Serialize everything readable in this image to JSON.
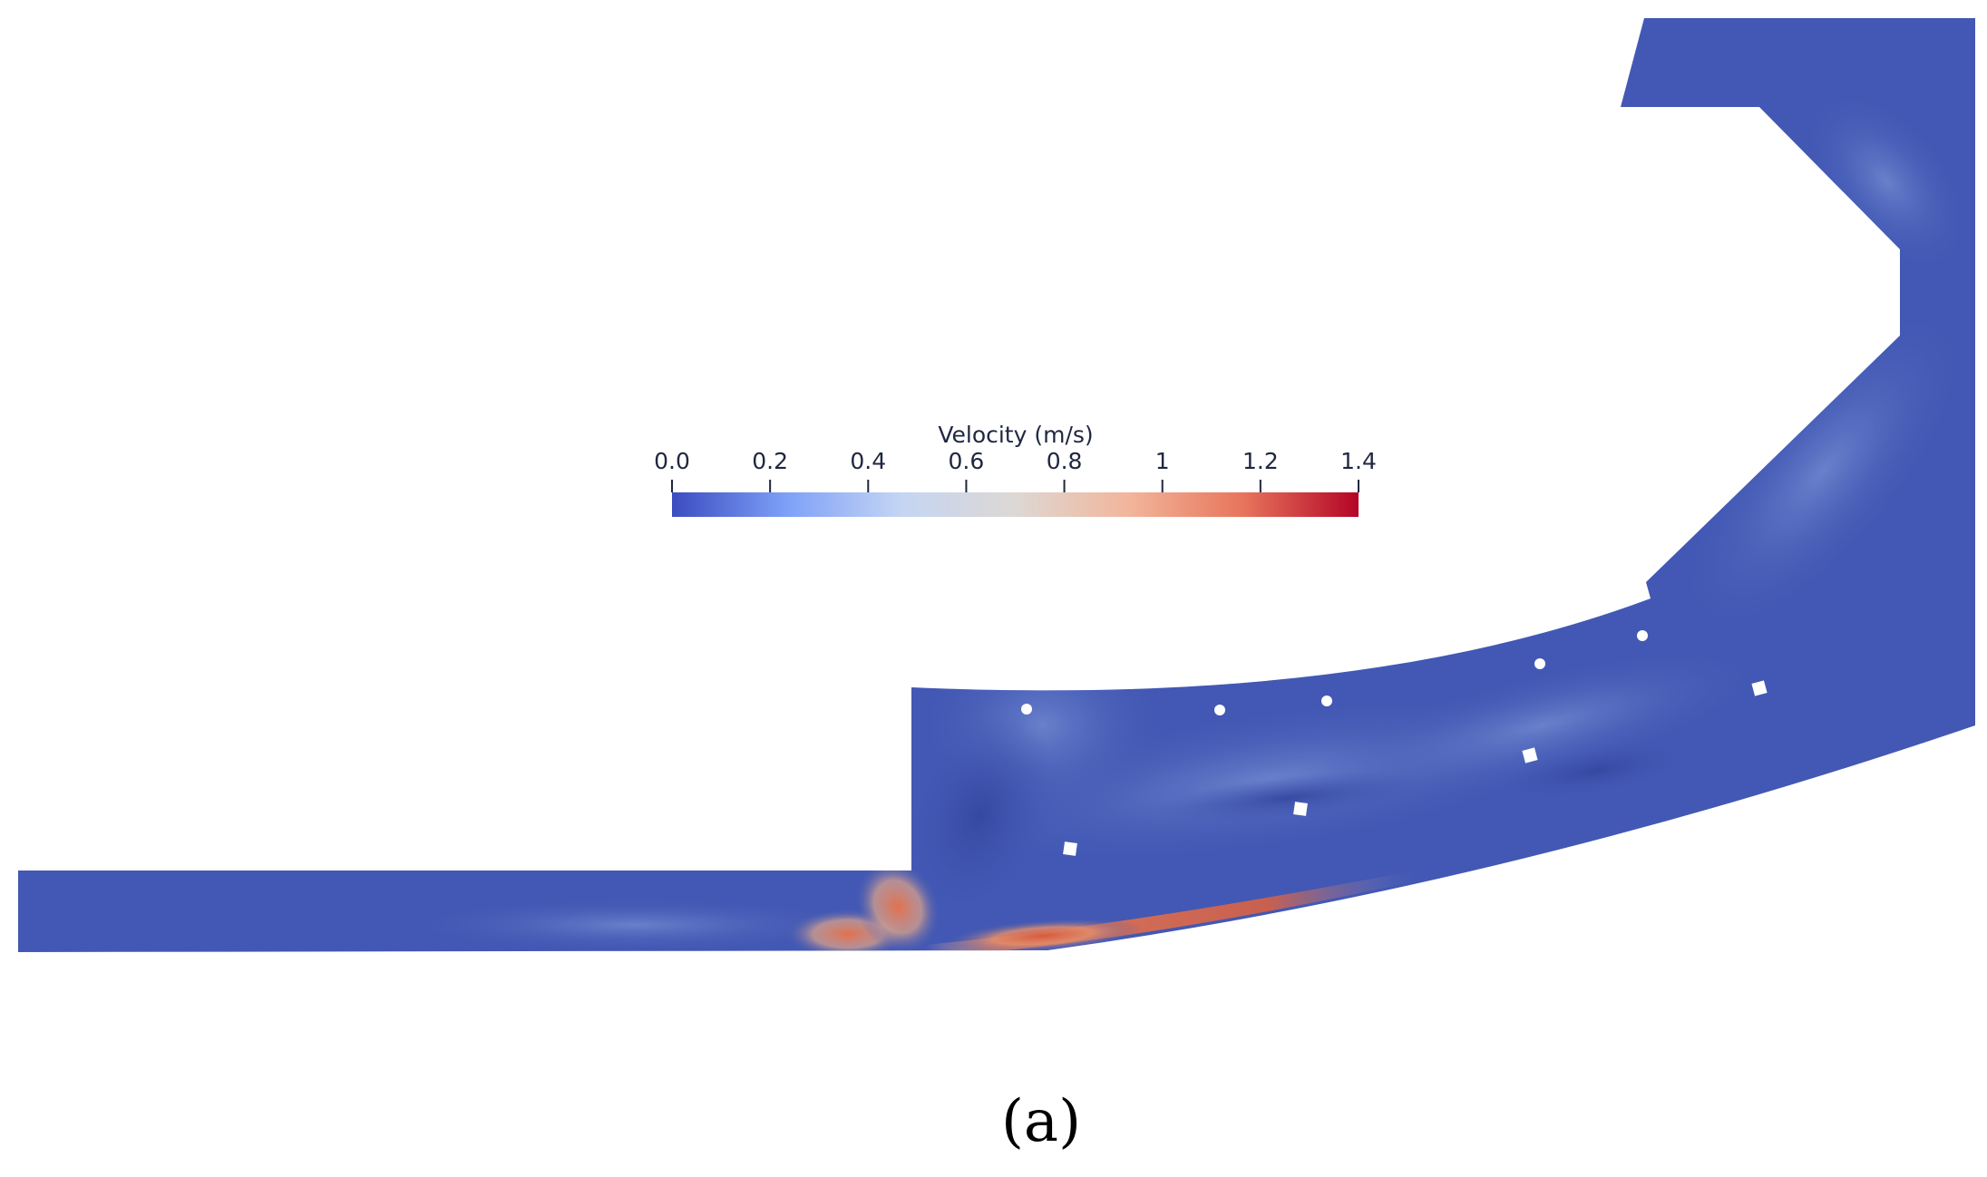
{
  "colorbar": {
    "title": "Velocity (m/s)",
    "range": [
      0.0,
      1.4
    ],
    "ticks": [
      {
        "value": 0.0,
        "label": "0.0"
      },
      {
        "value": 0.2,
        "label": "0.2"
      },
      {
        "value": 0.4,
        "label": "0.4"
      },
      {
        "value": 0.6,
        "label": "0.6"
      },
      {
        "value": 0.8,
        "label": "0.8"
      },
      {
        "value": 1.0,
        "label": "1"
      },
      {
        "value": 1.2,
        "label": "1.2"
      },
      {
        "value": 1.4,
        "label": "1.4"
      }
    ],
    "colormap": [
      "#3b4cc0",
      "#7ea0f8",
      "#c4d5f3",
      "#ddd8d4",
      "#f2b59a",
      "#e7745b",
      "#b40426"
    ]
  },
  "field": {
    "background_color": "#4258b4",
    "mid_color": "#5b74c4",
    "high_color": "#dc6a4c"
  },
  "panel_label": "(a)"
}
